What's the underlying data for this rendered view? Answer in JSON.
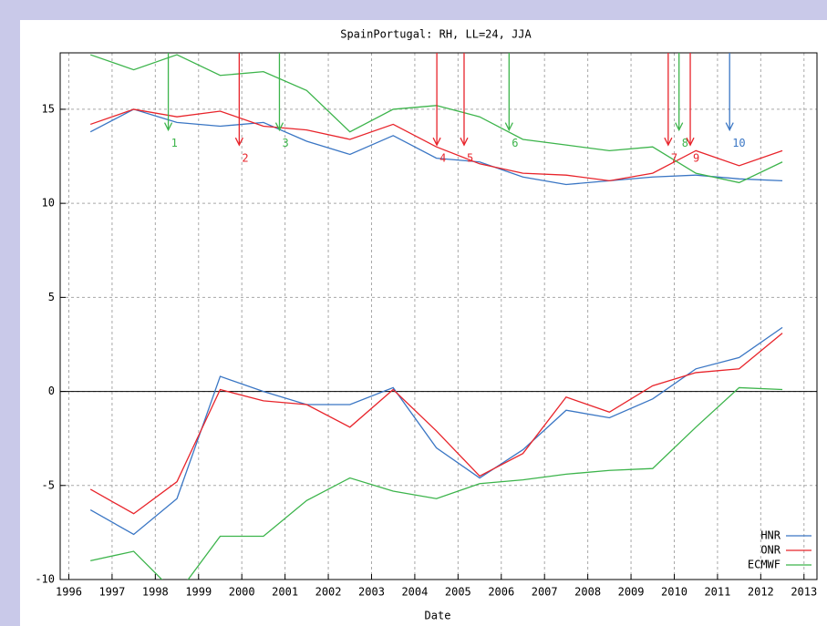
{
  "chart_data": {
    "type": "line",
    "title": "SpainPortugal: RH, LL=24, JJA",
    "x_label": "Date",
    "x": [
      1996.5,
      1997.5,
      1998.5,
      1999.5,
      2000.5,
      2001.5,
      2002.5,
      2003.5,
      2004.5,
      2005.5,
      2006.5,
      2007.5,
      2008.5,
      2009.5,
      2010.5,
      2011.5,
      2012.5
    ],
    "series": [
      {
        "name": "HNR",
        "color": "#3a76c4",
        "values": [
          13.8,
          15.0,
          14.3,
          14.1,
          14.3,
          13.3,
          12.6,
          13.6,
          12.4,
          12.2,
          11.4,
          11.0,
          11.2,
          11.4,
          11.5,
          11.3,
          11.2
        ],
        "values_lower": [
          -6.3,
          -7.6,
          -5.7,
          0.8,
          0.0,
          -0.7,
          -0.7,
          0.2,
          -3.0,
          -4.6,
          -3.1,
          -1.0,
          -1.4,
          -0.4,
          1.2,
          1.8,
          3.4
        ]
      },
      {
        "name": "ONR",
        "color": "#e8242b",
        "values": [
          14.2,
          15.0,
          14.6,
          14.9,
          14.1,
          13.9,
          13.4,
          14.2,
          13.0,
          12.1,
          11.6,
          11.5,
          11.2,
          11.6,
          12.8,
          12.0,
          12.8
        ],
        "values_lower": [
          -5.2,
          -6.5,
          -4.8,
          0.1,
          -0.5,
          -0.7,
          -1.9,
          0.1,
          -2.1,
          -4.5,
          -3.3,
          -0.3,
          -1.1,
          0.3,
          1.0,
          1.2,
          3.1
        ]
      },
      {
        "name": "ECMWF",
        "color": "#3cb44b",
        "values": [
          17.9,
          17.1,
          17.9,
          16.8,
          17.0,
          16.0,
          13.8,
          15.0,
          15.2,
          14.6,
          13.4,
          13.1,
          12.8,
          13.0,
          11.6,
          11.1,
          12.2
        ],
        "values_lower": [
          -9.0,
          -8.5,
          -10.8,
          -7.7,
          -7.7,
          -5.8,
          -4.6,
          -5.3,
          -5.7,
          -4.9,
          -4.7,
          -4.4,
          -4.2,
          -4.1,
          -1.9,
          0.2,
          0.1
        ]
      }
    ],
    "annotations": [
      {
        "label": "1",
        "x": 1998.3,
        "y": 13.9,
        "color": "#3cb44b"
      },
      {
        "label": "2",
        "x": 1999.94,
        "y": 13.1,
        "color": "#e8242b"
      },
      {
        "label": "3",
        "x": 2000.87,
        "y": 13.9,
        "color": "#3cb44b"
      },
      {
        "label": "4",
        "x": 2004.51,
        "y": 13.1,
        "color": "#e8242b"
      },
      {
        "label": "5",
        "x": 2005.14,
        "y": 13.1,
        "color": "#e8242b"
      },
      {
        "label": "6",
        "x": 2006.18,
        "y": 13.9,
        "color": "#3cb44b"
      },
      {
        "label": "7",
        "x": 2009.86,
        "y": 13.1,
        "color": "#e8242b"
      },
      {
        "label": "8",
        "x": 2010.11,
        "y": 13.9,
        "color": "#3cb44b"
      },
      {
        "label": "9",
        "x": 2010.37,
        "y": 13.1,
        "color": "#e8242b"
      },
      {
        "label": "10",
        "x": 2011.28,
        "y": 13.9,
        "color": "#3a76c4"
      }
    ],
    "xlim": [
      1995.8,
      2013.3
    ],
    "xticks": [
      1996,
      1997,
      1998,
      1999,
      2000,
      2001,
      2002,
      2003,
      2004,
      2005,
      2006,
      2007,
      2008,
      2009,
      2010,
      2011,
      2012,
      2013
    ],
    "ylim": [
      -10,
      18
    ],
    "yticks": [
      -10,
      -5,
      0,
      5,
      10,
      15
    ],
    "grid": true,
    "legend": "lower right"
  }
}
